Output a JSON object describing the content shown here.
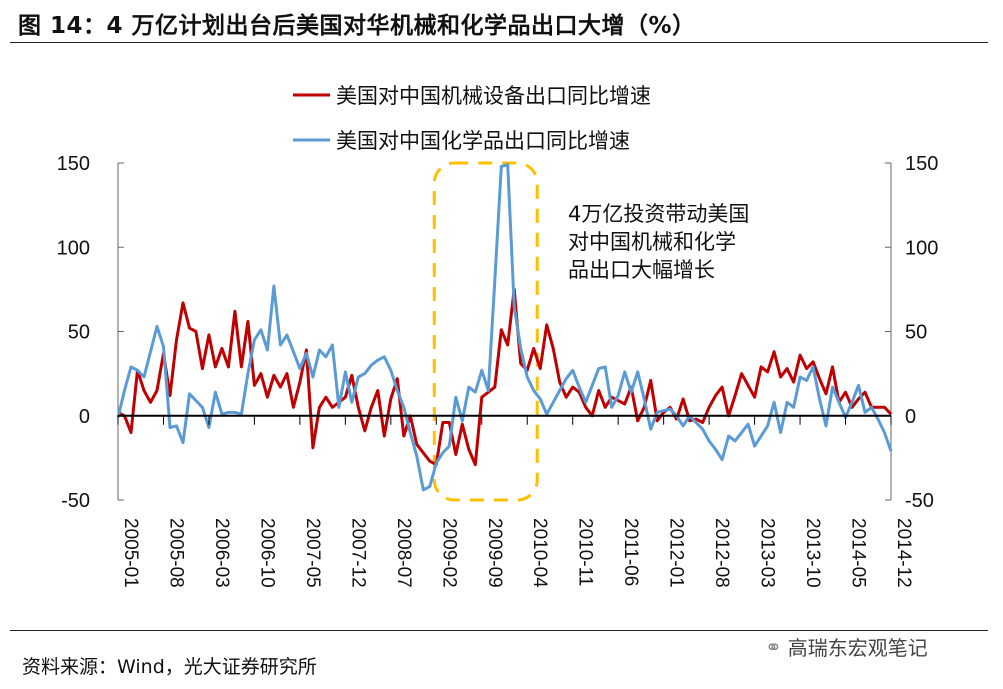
{
  "title": "图 14：4 万亿计划出台后美国对华机械和化学品出口大增（%）",
  "source": "资料来源：Wind，光大证券研究所",
  "watermark": "高瑞东宏观笔记",
  "chart_data": {
    "type": "line",
    "title": "",
    "xlabel": "",
    "ylabel": "",
    "ylim": [
      -50,
      150
    ],
    "y_ticks": [
      "-50",
      "0",
      "50",
      "100",
      "150"
    ],
    "y2lim": [
      -50,
      150
    ],
    "y2_ticks": [
      "-50",
      "0",
      "50",
      "100",
      "150"
    ],
    "x_tick_labels": [
      "2005-01",
      "2005-08",
      "2006-03",
      "2006-10",
      "2007-05",
      "2007-12",
      "2008-07",
      "2009-02",
      "2009-09",
      "2010-04",
      "2010-11",
      "2011-06",
      "2012-01",
      "2012-08",
      "2013-03",
      "2013-10",
      "2014-05",
      "2014-12"
    ],
    "legend_position": "top-center",
    "grid": false,
    "annotation": [
      "4万亿投资带动美国",
      "对中国机械和化学",
      "品出口大幅增长"
    ],
    "highlight_range": [
      "2009-02",
      "2010-04"
    ],
    "x": [
      "2005-01",
      "2005-02",
      "2005-03",
      "2005-04",
      "2005-05",
      "2005-06",
      "2005-07",
      "2005-08",
      "2005-09",
      "2005-10",
      "2005-11",
      "2005-12",
      "2006-01",
      "2006-02",
      "2006-03",
      "2006-04",
      "2006-05",
      "2006-06",
      "2006-07",
      "2006-08",
      "2006-09",
      "2006-10",
      "2006-11",
      "2006-12",
      "2007-01",
      "2007-02",
      "2007-03",
      "2007-04",
      "2007-05",
      "2007-06",
      "2007-07",
      "2007-08",
      "2007-09",
      "2007-10",
      "2007-11",
      "2007-12",
      "2008-01",
      "2008-02",
      "2008-03",
      "2008-04",
      "2008-05",
      "2008-06",
      "2008-07",
      "2008-08",
      "2008-09",
      "2008-10",
      "2008-11",
      "2008-12",
      "2009-01",
      "2009-02",
      "2009-03",
      "2009-04",
      "2009-05",
      "2009-06",
      "2009-07",
      "2009-08",
      "2009-09",
      "2009-10",
      "2009-11",
      "2009-12",
      "2010-01",
      "2010-02",
      "2010-03",
      "2010-04",
      "2010-05",
      "2010-06",
      "2010-07",
      "2010-08",
      "2010-09",
      "2010-10",
      "2010-11",
      "2010-12",
      "2011-01",
      "2011-02",
      "2011-03",
      "2011-04",
      "2011-05",
      "2011-06",
      "2011-07",
      "2011-08",
      "2011-09",
      "2011-10",
      "2011-11",
      "2011-12",
      "2012-01",
      "2012-02",
      "2012-03",
      "2012-04",
      "2012-05",
      "2012-06",
      "2012-07",
      "2012-08",
      "2012-09",
      "2012-10",
      "2012-11",
      "2012-12",
      "2013-01",
      "2013-02",
      "2013-03",
      "2013-04",
      "2013-05",
      "2013-06",
      "2013-07",
      "2013-08",
      "2013-09",
      "2013-10",
      "2013-11",
      "2013-12",
      "2014-01",
      "2014-02",
      "2014-03",
      "2014-04",
      "2014-05",
      "2014-06",
      "2014-07",
      "2014-08",
      "2014-09",
      "2014-10",
      "2014-11",
      "2014-12"
    ],
    "series": [
      {
        "name": "美国对中国机械设备出口同比增速",
        "color": "#C00000",
        "values": [
          2,
          0,
          -10,
          27,
          15,
          8,
          15,
          37,
          12,
          45,
          67,
          52,
          50,
          28,
          48,
          29,
          40,
          29,
          62,
          29,
          56,
          18,
          25,
          11,
          24,
          17,
          25,
          5,
          20,
          39,
          -19,
          5,
          11,
          5,
          8,
          11,
          24,
          5,
          -9,
          5,
          15,
          -12,
          10,
          22,
          -12,
          0,
          -17,
          -22,
          -27,
          -29,
          -4,
          -4,
          -23,
          -5,
          -20,
          -29,
          11,
          14,
          17,
          51,
          42,
          75,
          31,
          27,
          40,
          28,
          54,
          40,
          20,
          11,
          17,
          14,
          5,
          0,
          15,
          5,
          11,
          9,
          7,
          17,
          -3,
          5,
          21,
          -3,
          2,
          5,
          -2,
          10,
          -3,
          -2,
          -4,
          5,
          12,
          17,
          0,
          12,
          25,
          18,
          11,
          29,
          26,
          38,
          23,
          28,
          20,
          36,
          28,
          32,
          22,
          13,
          29,
          8,
          14,
          5,
          10,
          14,
          5,
          5,
          5,
          1
        ]
      },
      {
        "name": "美国对中国化学品出口同比增速",
        "color": "#5B9BD5",
        "values": [
          -1,
          15,
          29,
          27,
          23,
          38,
          53,
          41,
          -7,
          -6,
          -16,
          13,
          9,
          5,
          -7,
          14,
          1,
          2,
          2,
          1,
          25,
          45,
          51,
          39,
          77,
          42,
          48,
          38,
          28,
          37,
          23,
          39,
          35,
          42,
          5,
          26,
          8,
          23,
          25,
          30,
          33,
          35,
          27,
          15,
          5,
          -10,
          -24,
          -44,
          -42,
          -28,
          -22,
          -18,
          11,
          -3,
          17,
          14,
          27,
          15,
          80,
          148,
          149,
          65,
          40,
          23,
          15,
          10,
          1,
          8,
          15,
          22,
          27,
          17,
          8,
          18,
          28,
          29,
          5,
          12,
          26,
          14,
          26,
          10,
          -8,
          2,
          3,
          4,
          0,
          -6,
          0,
          -4,
          -8,
          -15,
          -20,
          -26,
          -12,
          -15,
          -10,
          -5,
          -18,
          -12,
          -6,
          8,
          -10,
          8,
          5,
          23,
          21,
          29,
          10,
          -6,
          17,
          8,
          -1,
          8,
          18,
          2,
          5,
          -2,
          -10,
          -21
        ]
      }
    ]
  }
}
